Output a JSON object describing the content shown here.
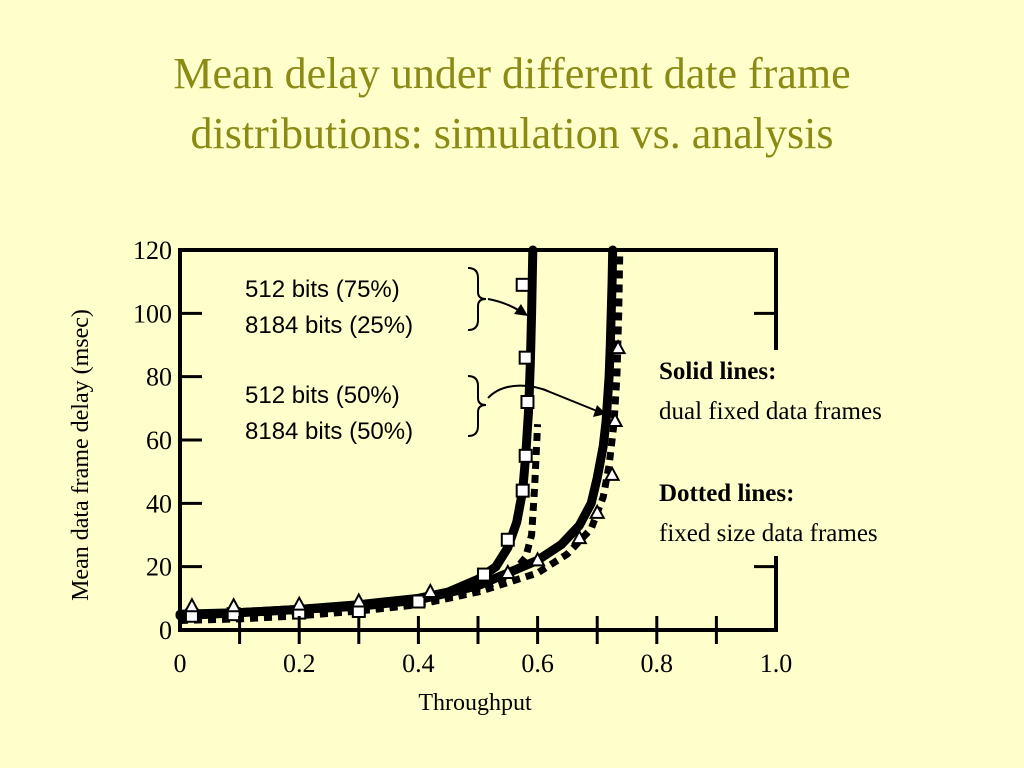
{
  "slide": {
    "title_lines": [
      "Mean delay under different date frame",
      "distributions: simulation vs. analysis"
    ]
  },
  "notes": {
    "solid_heading": "Solid lines:",
    "solid_text": "dual fixed data frames",
    "dotted_heading": "Dotted lines:",
    "dotted_text": "fixed size data frames"
  },
  "annotations": {
    "group_a": [
      "512 bits (75%)",
      "8184 bits (25%)"
    ],
    "group_b": [
      "512 bits (50%)",
      "8184 bits (50%)"
    ]
  },
  "chart_data": {
    "type": "line",
    "xlabel": "Throughput",
    "ylabel": "Mean data frame delay (msec)",
    "xlim": [
      0,
      1.0
    ],
    "ylim": [
      0,
      120
    ],
    "xticks": [
      0,
      0.2,
      0.4,
      0.6,
      0.8,
      1.0
    ],
    "xtick_labels": [
      "0",
      "0.2",
      "0.4",
      "0.6",
      "0.8",
      "1.0"
    ],
    "yticks": [
      0,
      20,
      40,
      60,
      80,
      100,
      120
    ],
    "ytick_labels": [
      "0",
      "20",
      "40",
      "60",
      "80",
      "100",
      "120"
    ],
    "grid": false,
    "series": [
      {
        "style": "solid",
        "marker": "square",
        "x": [
          0.0,
          0.1,
          0.2,
          0.3,
          0.4,
          0.45,
          0.5,
          0.53,
          0.55,
          0.565,
          0.575,
          0.58,
          0.585,
          0.588,
          0.59,
          0.592
        ],
        "y": [
          4.5,
          5.5,
          6.5,
          8,
          10,
          12,
          16,
          20,
          26,
          34,
          44,
          55,
          70,
          85,
          100,
          120
        ]
      },
      {
        "style": "dotted",
        "x": [
          0.0,
          0.1,
          0.2,
          0.3,
          0.4,
          0.5,
          0.53,
          0.56,
          0.58,
          0.59,
          0.595,
          0.6
        ],
        "y": [
          3.5,
          4,
          5,
          6.5,
          8.5,
          13,
          15,
          18.5,
          23,
          30,
          45,
          65
        ]
      },
      {
        "style": "solid",
        "marker": "triangle",
        "x": [
          0.0,
          0.1,
          0.2,
          0.3,
          0.4,
          0.5,
          0.55,
          0.6,
          0.64,
          0.67,
          0.69,
          0.7,
          0.71,
          0.715,
          0.72,
          0.722,
          0.725,
          0.726
        ],
        "y": [
          5,
          5.5,
          6.5,
          7.5,
          9.5,
          14,
          18,
          22,
          27,
          33,
          40,
          48,
          58,
          66,
          80,
          90,
          110,
          120
        ]
      },
      {
        "style": "dotted",
        "x": [
          0.0,
          0.1,
          0.2,
          0.3,
          0.4,
          0.5,
          0.6,
          0.65,
          0.69,
          0.71,
          0.72,
          0.728,
          0.733,
          0.736,
          0.738
        ],
        "y": [
          3,
          3.5,
          4.5,
          6,
          8,
          12,
          18,
          24,
          32,
          42,
          52,
          65,
          80,
          100,
          120
        ]
      }
    ],
    "markers": [
      {
        "series": 0,
        "shape": "square",
        "points": [
          [
            0.02,
            4.5
          ],
          [
            0.09,
            5
          ],
          [
            0.2,
            5.5
          ],
          [
            0.3,
            6
          ],
          [
            0.4,
            9
          ],
          [
            0.51,
            17.5
          ],
          [
            0.55,
            28.5
          ],
          [
            0.575,
            44
          ],
          [
            0.58,
            55
          ],
          [
            0.583,
            72
          ],
          [
            0.58,
            86
          ],
          [
            0.575,
            109
          ]
        ]
      },
      {
        "series": 2,
        "shape": "triangle",
        "points": [
          [
            0.02,
            7.5
          ],
          [
            0.09,
            7.5
          ],
          [
            0.2,
            8
          ],
          [
            0.3,
            9
          ],
          [
            0.42,
            12
          ],
          [
            0.55,
            18
          ],
          [
            0.6,
            22
          ],
          [
            0.67,
            29
          ],
          [
            0.7,
            37
          ],
          [
            0.725,
            49
          ],
          [
            0.73,
            66
          ],
          [
            0.735,
            89
          ]
        ]
      }
    ]
  }
}
